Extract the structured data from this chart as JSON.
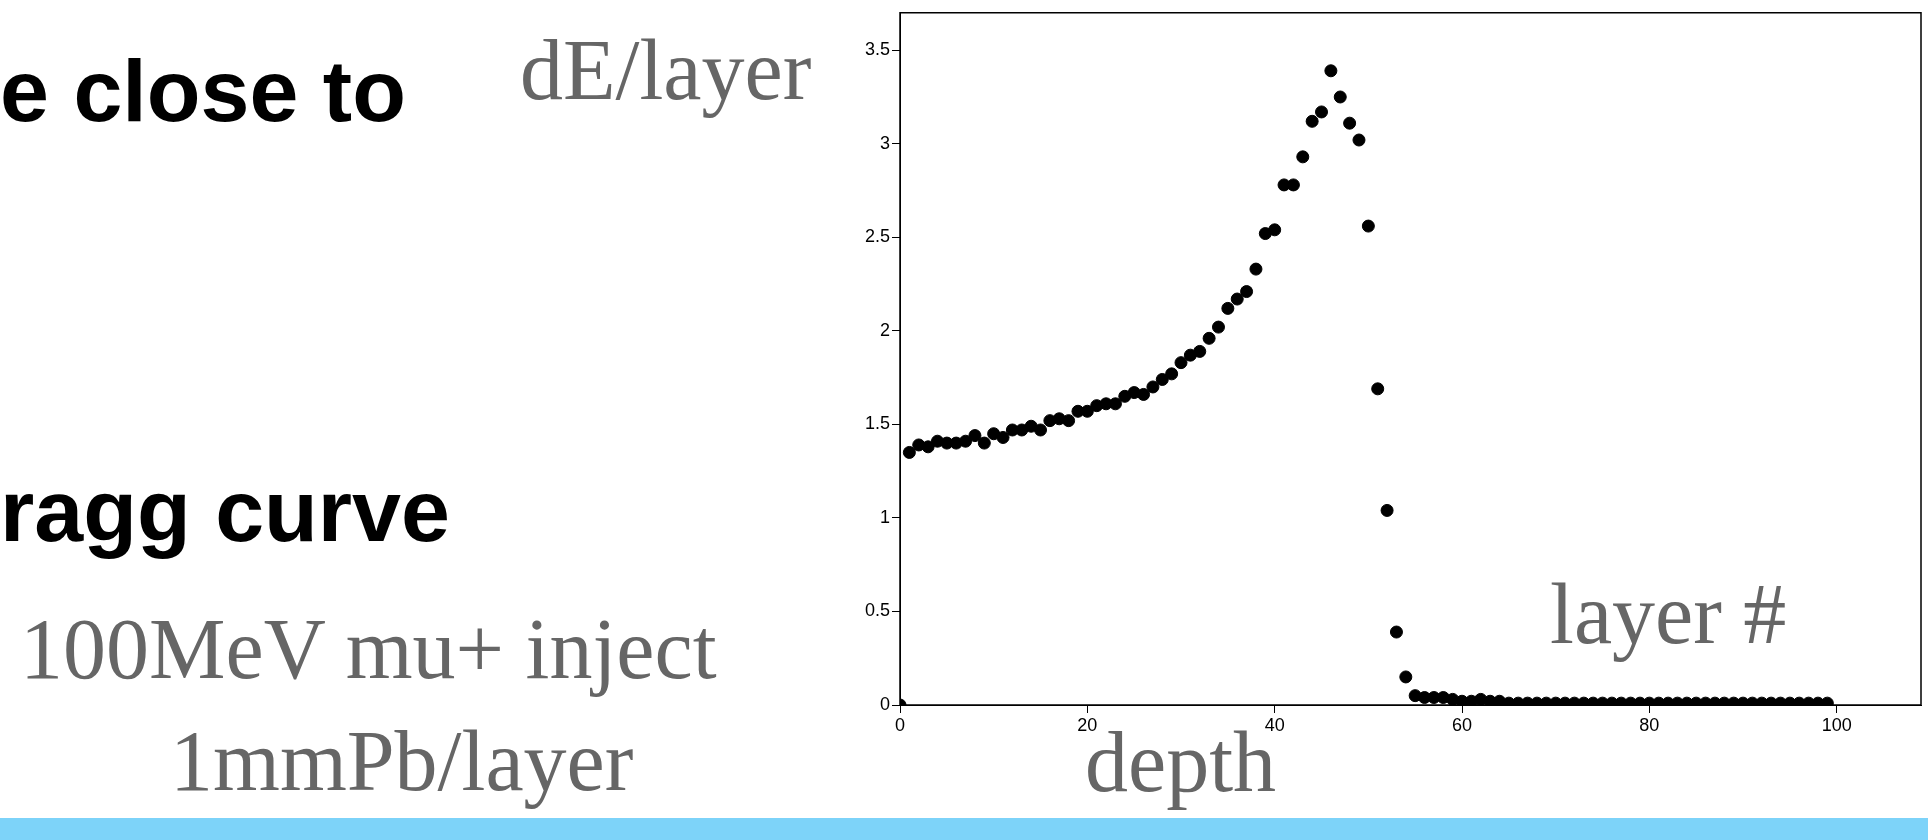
{
  "chart_data": {
    "type": "scatter",
    "ylabel": "dE/layer",
    "xlabel": "depth",
    "annotations": [
      "e close to",
      "ragg curve",
      "100MeV mu+ inject",
      "1mmPb/layer",
      "layer #"
    ],
    "x": [
      0,
      1,
      2,
      3,
      4,
      5,
      6,
      7,
      8,
      9,
      10,
      11,
      12,
      13,
      14,
      15,
      16,
      17,
      18,
      19,
      20,
      21,
      22,
      23,
      24,
      25,
      26,
      27,
      28,
      29,
      30,
      31,
      32,
      33,
      34,
      35,
      36,
      37,
      38,
      39,
      40,
      41,
      42,
      43,
      44,
      45,
      46,
      47,
      48,
      49,
      50,
      51,
      52,
      53,
      54,
      55,
      56,
      57,
      58,
      59,
      60,
      61,
      62,
      63,
      64,
      65,
      66,
      67,
      68,
      69,
      70,
      71,
      72,
      73,
      74,
      75,
      76,
      77,
      78,
      79,
      80,
      81,
      82,
      83,
      84,
      85,
      86,
      87,
      88,
      89,
      90,
      91,
      92,
      93,
      94,
      95,
      96,
      97,
      98,
      99
    ],
    "series": [
      {
        "color": "#000000",
        "values": [
          0,
          1.35,
          1.39,
          1.38,
          1.41,
          1.4,
          1.4,
          1.41,
          1.44,
          1.4,
          1.45,
          1.43,
          1.47,
          1.47,
          1.49,
          1.47,
          1.52,
          1.53,
          1.52,
          1.57,
          1.57,
          1.6,
          1.61,
          1.61,
          1.65,
          1.67,
          1.66,
          1.7,
          1.74,
          1.77,
          1.83,
          1.87,
          1.89,
          1.96,
          2.02,
          2.12,
          2.17,
          2.21,
          2.33,
          2.52,
          2.54,
          2.78,
          2.78,
          2.93,
          3.12,
          3.17,
          3.39,
          3.25,
          3.11,
          3.02,
          2.56,
          1.69,
          1.04,
          0.39,
          0.15,
          0.05,
          0.04,
          0.04,
          0.04,
          0.03,
          0.02,
          0.02,
          0.03,
          0.02,
          0.02,
          0.01,
          0.01,
          0.01,
          0.01,
          0.01,
          0.01,
          0.01,
          0.01,
          0.01,
          0.01,
          0.01,
          0.01,
          0.01,
          0.01,
          0.01,
          0.01,
          0.01,
          0.01,
          0.01,
          0.01,
          0.01,
          0.01,
          0.01,
          0.01,
          0.01,
          0.01,
          0.01,
          0.01,
          0.01,
          0.01,
          0.01,
          0.01,
          0.01,
          0.01,
          0.01
        ]
      }
    ],
    "marker": "circle",
    "xlim": [
      0,
      109
    ],
    "ylim": [
      0,
      3.7
    ],
    "xticks": [
      0,
      20,
      40,
      60,
      80,
      100
    ],
    "yticks": [
      0,
      0.5,
      1,
      1.5,
      2,
      2.5,
      3,
      3.5
    ]
  }
}
